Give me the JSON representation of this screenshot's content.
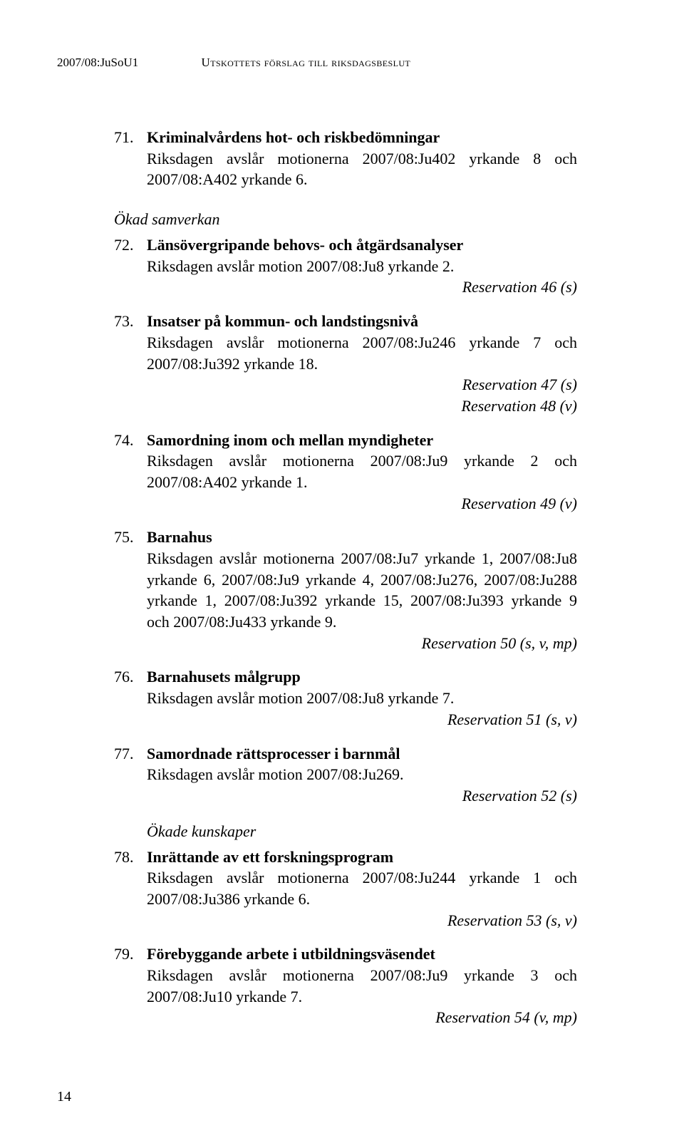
{
  "header": {
    "doc_id": "2007/08:JuSoU1",
    "section_name": "Utskottets förslag till riksdagsbeslut"
  },
  "items": [
    {
      "num": "71.",
      "title": "Kriminalvårdens hot- och riskbedömningar",
      "body": "Riksdagen avslår motionerna 2007/08:Ju402 yrkande 8 och 2007/08:A402 yrkande 6.",
      "reservations": []
    }
  ],
  "sub1": "Ökad samverkan",
  "items2": [
    {
      "num": "72.",
      "title": "Länsövergripande behovs- och åtgärdsanalyser",
      "body": "Riksdagen avslår motion 2007/08:Ju8 yrkande 2.",
      "reservations": [
        "Reservation 46 (s)"
      ]
    },
    {
      "num": "73.",
      "title": "Insatser på kommun- och landstingsnivå",
      "body": "Riksdagen avslår motionerna 2007/08:Ju246 yrkande 7 och 2007/08:Ju392 yrkande 18.",
      "reservations": [
        "Reservation 47 (s)",
        "Reservation 48 (v)"
      ]
    },
    {
      "num": "74.",
      "title": "Samordning inom och mellan myndigheter",
      "body": "Riksdagen avslår motionerna 2007/08:Ju9 yrkande 2 och 2007/08:A402 yrkande 1.",
      "reservations": [
        "Reservation 49 (v)"
      ]
    },
    {
      "num": "75.",
      "title": "Barnahus",
      "body": "Riksdagen avslår motionerna 2007/08:Ju7 yrkande 1, 2007/08:Ju8 yrkande 6, 2007/08:Ju9 yrkande 4, 2007/08:Ju276, 2007/08:Ju288 yrkande 1, 2007/08:Ju392 yrkande 15, 2007/08:Ju393 yrkande 9 och 2007/08:Ju433 yrkande 9.",
      "reservations": [
        "Reservation 50 (s, v, mp)"
      ]
    },
    {
      "num": "76.",
      "title": "Barnahusets målgrupp",
      "body": "Riksdagen avslår motion 2007/08:Ju8 yrkande 7.",
      "reservations": [
        "Reservation 51 (s, v)"
      ]
    },
    {
      "num": "77.",
      "title": "Samordnade rättsprocesser i barnmål",
      "body": "Riksdagen avslår motion 2007/08:Ju269.",
      "reservations": [
        "Reservation 52 (s)"
      ]
    }
  ],
  "sub2": "Ökade kunskaper",
  "items3": [
    {
      "num": "78.",
      "title": "Inrättande av ett forskningsprogram",
      "body": "Riksdagen avslår motionerna 2007/08:Ju244 yrkande 1 och 2007/08:Ju386 yrkande 6.",
      "reservations": [
        "Reservation 53 (s, v)"
      ]
    },
    {
      "num": "79.",
      "title": "Förebyggande arbete i utbildningsväsendet",
      "body": "Riksdagen avslår motionerna 2007/08:Ju9 yrkande 3 och 2007/08:Ju10 yrkande 7.",
      "reservations": [
        "Reservation 54 (v, mp)"
      ]
    }
  ],
  "page_number": "14"
}
